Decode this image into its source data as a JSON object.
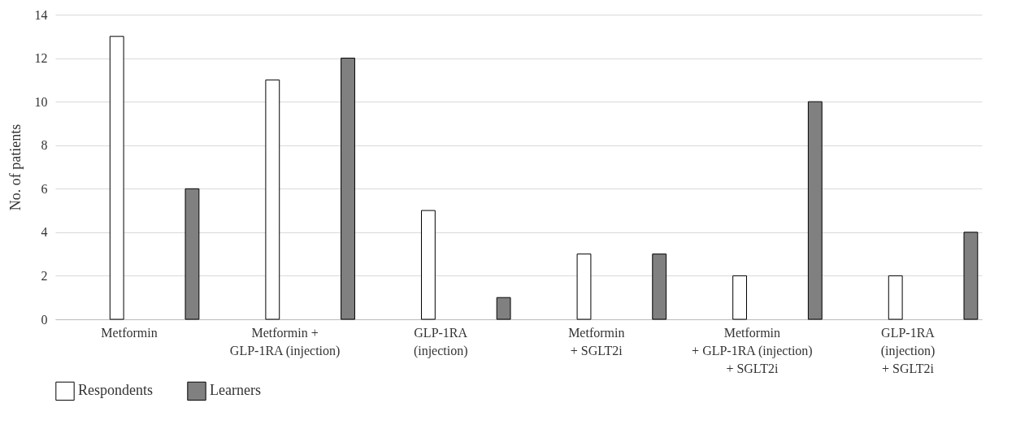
{
  "chart_data": {
    "type": "bar",
    "ylabel": "No. of patients",
    "categories": [
      "Metformin",
      "Metformin +\nGLP-1RA (injection)",
      "GLP-1RA\n(injection)",
      "Metformin\n+ SGLT2i",
      "Metformin\n+ GLP-1RA (injection)\n+ SGLT2i",
      "GLP-1RA\n(injection)\n+ SGLT2i"
    ],
    "series": [
      {
        "name": "Respondents",
        "color": "#ffffff",
        "values": [
          13,
          11,
          5,
          3,
          2,
          2
        ]
      },
      {
        "name": "Learners",
        "color": "#808080",
        "values": [
          6,
          12,
          1,
          3,
          10,
          4
        ]
      }
    ],
    "ylim": [
      0,
      14
    ],
    "yticks": [
      0,
      2,
      4,
      6,
      8,
      10,
      12,
      14
    ],
    "grid": "y",
    "legend": "bottom left"
  }
}
